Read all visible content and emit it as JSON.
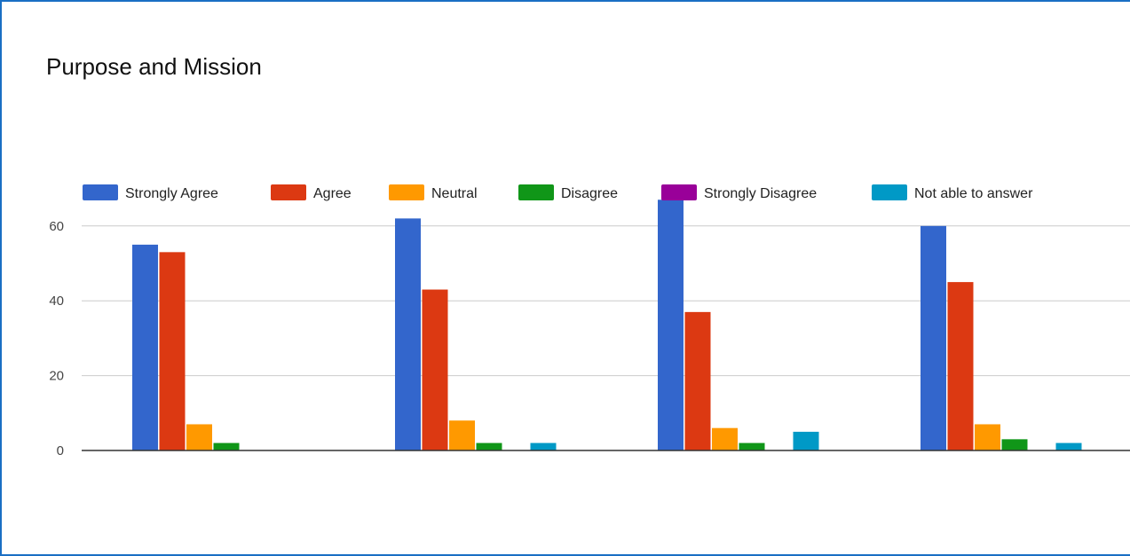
{
  "chart_data": {
    "type": "bar",
    "title": "Purpose and Mission",
    "categories": [
      "",
      "",
      "",
      ""
    ],
    "series": [
      {
        "name": "Strongly Agree",
        "color": "#3366cc",
        "values": [
          55,
          62,
          67,
          60
        ]
      },
      {
        "name": "Agree",
        "color": "#dc3912",
        "values": [
          53,
          43,
          37,
          45
        ]
      },
      {
        "name": "Neutral",
        "color": "#ff9900",
        "values": [
          7,
          8,
          6,
          7
        ]
      },
      {
        "name": "Disagree",
        "color": "#109618",
        "values": [
          2,
          2,
          2,
          3
        ]
      },
      {
        "name": "Strongly Disagree",
        "color": "#990099",
        "values": [
          0,
          0,
          0,
          0
        ]
      },
      {
        "name": "Not able to answer",
        "color": "#0099c6",
        "values": [
          0,
          2,
          5,
          2
        ]
      }
    ],
    "yticks": [
      0,
      20,
      40,
      60
    ],
    "ylim": [
      0,
      70
    ],
    "grid": true,
    "legend_position": "top"
  }
}
